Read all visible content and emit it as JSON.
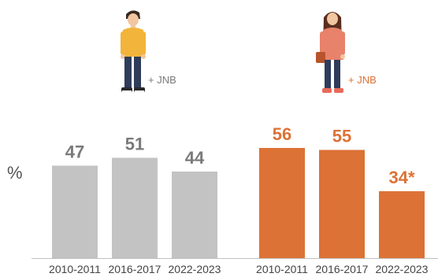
{
  "chart_data": [
    {
      "type": "bar",
      "group": "boys",
      "figure_label": "+ JNB",
      "categories": [
        "2010-2011",
        "2016-2017",
        "2022-2023"
      ],
      "values": [
        47,
        51,
        44
      ],
      "value_labels": [
        "47",
        "51",
        "44"
      ],
      "color": "#c3c3c3",
      "label_color": "#7a7a7a",
      "ylim": [
        0,
        70
      ]
    },
    {
      "type": "bar",
      "group": "girls",
      "figure_label": "+ JNB",
      "categories": [
        "2010-2011",
        "2016-2017",
        "2022-2023"
      ],
      "values": [
        56,
        55,
        34
      ],
      "value_labels": [
        "56",
        "55",
        "34*"
      ],
      "color": "#dc7236",
      "label_color": "#dc7236",
      "ylim": [
        0,
        70
      ]
    }
  ],
  "unit_label": "%",
  "axis_color": "#bfbfbf",
  "icons": [
    "boy-student-icon",
    "girl-student-icon"
  ]
}
